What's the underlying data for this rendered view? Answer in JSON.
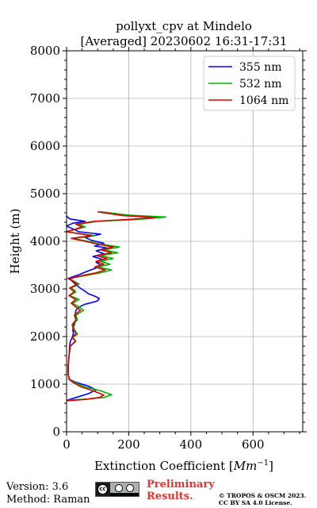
{
  "chart_data": {
    "type": "line",
    "title": "pollyxt_cpv at Mindelo",
    "subtitle": "[Averaged] 20230602 16:31-17:31",
    "xlabel": "Extinction Coefficient [Mm⁻¹]",
    "xlabel_main": "Extinction Coefficient [",
    "xlabel_unit": "Mm",
    "xlabel_exp": "−1",
    "xlabel_close": "]",
    "ylabel": "Height (m)",
    "xlim": [
      0,
      760
    ],
    "ylim": [
      0,
      8000
    ],
    "xticks": [
      0,
      200,
      400,
      600
    ],
    "yticks": [
      0,
      1000,
      2000,
      3000,
      4000,
      5000,
      6000,
      7000,
      8000
    ],
    "grid": true,
    "legend_position": "top-right",
    "series": [
      {
        "name": "355 nm",
        "color": "#0000ff",
        "points": [
          [
            0,
            660
          ],
          [
            30,
            720
          ],
          [
            70,
            800
          ],
          [
            95,
            880
          ],
          [
            70,
            960
          ],
          [
            30,
            1040
          ],
          [
            10,
            1100
          ],
          [
            5,
            1200
          ],
          [
            5,
            1400
          ],
          [
            8,
            1600
          ],
          [
            10,
            1800
          ],
          [
            12,
            1900
          ],
          [
            18,
            1980
          ],
          [
            22,
            2060
          ],
          [
            20,
            2150
          ],
          [
            25,
            2250
          ],
          [
            30,
            2350
          ],
          [
            28,
            2450
          ],
          [
            30,
            2550
          ],
          [
            40,
            2620
          ],
          [
            60,
            2680
          ],
          [
            85,
            2720
          ],
          [
            100,
            2750
          ],
          [
            105,
            2800
          ],
          [
            90,
            2850
          ],
          [
            70,
            2900
          ],
          [
            60,
            2950
          ],
          [
            48,
            3000
          ],
          [
            35,
            3060
          ],
          [
            25,
            3120
          ],
          [
            15,
            3180
          ],
          [
            5,
            3220
          ],
          [
            40,
            3300
          ],
          [
            70,
            3380
          ],
          [
            100,
            3450
          ],
          [
            110,
            3500
          ],
          [
            95,
            3560
          ],
          [
            115,
            3620
          ],
          [
            85,
            3680
          ],
          [
            120,
            3740
          ],
          [
            95,
            3800
          ],
          [
            130,
            3860
          ],
          [
            90,
            3900
          ],
          [
            120,
            3960
          ],
          [
            80,
            4020
          ],
          [
            60,
            4080
          ],
          [
            110,
            4150
          ],
          [
            40,
            4200
          ],
          [
            20,
            4260
          ],
          [
            0,
            4320
          ],
          [
            20,
            4380
          ],
          [
            60,
            4420
          ],
          [
            10,
            4470
          ],
          [
            0,
            4530
          ]
        ]
      },
      {
        "name": "532 nm",
        "color": "#00b400",
        "points": [
          [
            0,
            660
          ],
          [
            70,
            690
          ],
          [
            120,
            720
          ],
          [
            145,
            780
          ],
          [
            110,
            860
          ],
          [
            60,
            940
          ],
          [
            25,
            1040
          ],
          [
            10,
            1100
          ],
          [
            5,
            1200
          ],
          [
            5,
            1400
          ],
          [
            8,
            1600
          ],
          [
            12,
            1800
          ],
          [
            30,
            1900
          ],
          [
            20,
            1980
          ],
          [
            35,
            2050
          ],
          [
            25,
            2150
          ],
          [
            20,
            2250
          ],
          [
            35,
            2350
          ],
          [
            30,
            2450
          ],
          [
            55,
            2550
          ],
          [
            40,
            2620
          ],
          [
            20,
            2700
          ],
          [
            40,
            2780
          ],
          [
            10,
            2860
          ],
          [
            30,
            2940
          ],
          [
            15,
            3020
          ],
          [
            40,
            3100
          ],
          [
            25,
            3160
          ],
          [
            10,
            3220
          ],
          [
            60,
            3280
          ],
          [
            110,
            3340
          ],
          [
            145,
            3400
          ],
          [
            100,
            3460
          ],
          [
            140,
            3520
          ],
          [
            110,
            3580
          ],
          [
            150,
            3640
          ],
          [
            110,
            3700
          ],
          [
            165,
            3760
          ],
          [
            120,
            3820
          ],
          [
            170,
            3880
          ],
          [
            110,
            3940
          ],
          [
            70,
            4000
          ],
          [
            20,
            4060
          ],
          [
            90,
            4120
          ],
          [
            0,
            4200
          ],
          [
            60,
            4300
          ],
          [
            40,
            4360
          ],
          [
            100,
            4420
          ],
          [
            230,
            4460
          ],
          [
            320,
            4510
          ],
          [
            200,
            4550
          ],
          [
            110,
            4620
          ]
        ]
      },
      {
        "name": "1064 nm",
        "color": "#dd0000",
        "points": [
          [
            0,
            650
          ],
          [
            60,
            680
          ],
          [
            105,
            720
          ],
          [
            120,
            770
          ],
          [
            90,
            850
          ],
          [
            45,
            950
          ],
          [
            20,
            1040
          ],
          [
            8,
            1100
          ],
          [
            5,
            1200
          ],
          [
            5,
            1400
          ],
          [
            8,
            1600
          ],
          [
            12,
            1800
          ],
          [
            28,
            1900
          ],
          [
            18,
            1980
          ],
          [
            30,
            2060
          ],
          [
            22,
            2150
          ],
          [
            18,
            2250
          ],
          [
            30,
            2350
          ],
          [
            25,
            2450
          ],
          [
            45,
            2550
          ],
          [
            30,
            2620
          ],
          [
            15,
            2700
          ],
          [
            30,
            2780
          ],
          [
            8,
            2860
          ],
          [
            25,
            2940
          ],
          [
            10,
            3020
          ],
          [
            35,
            3100
          ],
          [
            20,
            3160
          ],
          [
            8,
            3220
          ],
          [
            50,
            3280
          ],
          [
            95,
            3340
          ],
          [
            125,
            3400
          ],
          [
            90,
            3460
          ],
          [
            120,
            3520
          ],
          [
            95,
            3580
          ],
          [
            130,
            3640
          ],
          [
            95,
            3700
          ],
          [
            145,
            3760
          ],
          [
            110,
            3820
          ],
          [
            150,
            3880
          ],
          [
            100,
            3940
          ],
          [
            60,
            4000
          ],
          [
            15,
            4060
          ],
          [
            80,
            4120
          ],
          [
            0,
            4200
          ],
          [
            50,
            4300
          ],
          [
            30,
            4360
          ],
          [
            90,
            4420
          ],
          [
            200,
            4460
          ],
          [
            285,
            4500
          ],
          [
            180,
            4540
          ],
          [
            100,
            4620
          ]
        ]
      }
    ]
  },
  "footer": {
    "version": "Version: 3.6",
    "method": "Method: Raman",
    "prelim_line1": "Preliminary",
    "prelim_line2": "Results.",
    "copyright_line1": "© TROPOS & OSCM 2023.",
    "copyright_line2": "CC BY SA 4.0 License."
  }
}
